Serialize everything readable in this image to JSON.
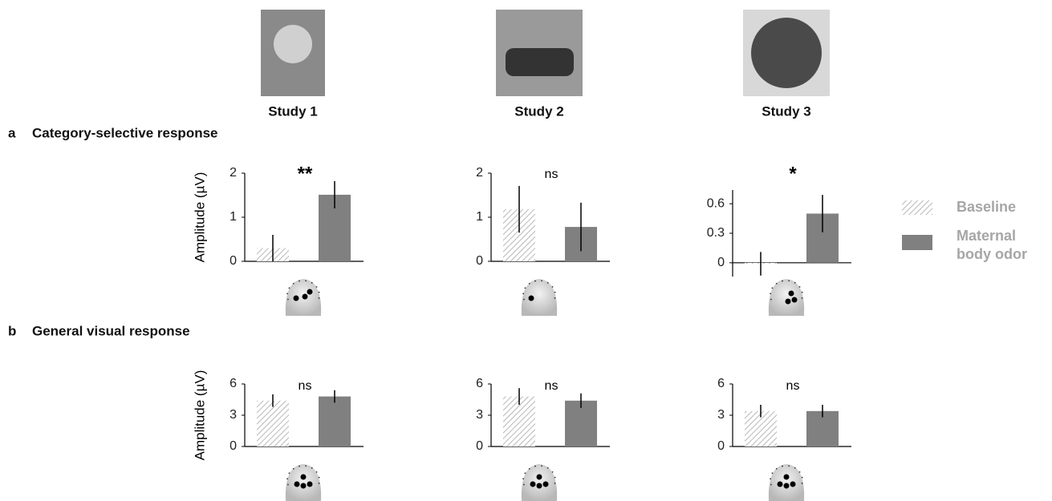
{
  "columns": [
    "Study 1",
    "Study 2",
    "Study 3"
  ],
  "sections": [
    {
      "letter": "a",
      "title": "Category-selective response"
    },
    {
      "letter": "b",
      "title": "General visual response"
    }
  ],
  "legend": [
    {
      "name": "Baseline",
      "color": "#a6a6a6",
      "hatch": true
    },
    {
      "name": "Maternal body odor",
      "color": "#808080",
      "hatch": false
    }
  ],
  "chart_data": [
    {
      "type": "bar",
      "ylabel": "Amplitude (µV)",
      "values": [
        0.3,
        1.51
      ],
      "errors": [
        0.3,
        0.31
      ],
      "ylim": [
        0,
        2
      ],
      "yticks": [
        0,
        1,
        2
      ],
      "annotation": "**"
    },
    {
      "type": "bar",
      "values": [
        1.18,
        0.78
      ],
      "errors": [
        0.53,
        0.55
      ],
      "ylim": [
        0,
        2
      ],
      "yticks": [
        0,
        1,
        2
      ],
      "annotation": "ns"
    },
    {
      "type": "bar",
      "values": [
        -0.01,
        0.5
      ],
      "errors": [
        0.12,
        0.19
      ],
      "ylim": [
        -0.14,
        0.74
      ],
      "yticks": [
        0,
        0.3,
        0.6
      ],
      "annotation": "*"
    },
    {
      "type": "bar",
      "ylabel": "Amplitude (µV)",
      "values": [
        4.4,
        4.8
      ],
      "errors": [
        0.6,
        0.6
      ],
      "ylim": [
        0,
        6
      ],
      "yticks": [
        0,
        3,
        6
      ],
      "annotation": "ns"
    },
    {
      "type": "bar",
      "values": [
        4.8,
        4.4
      ],
      "errors": [
        0.8,
        0.7
      ],
      "ylim": [
        0,
        6
      ],
      "yticks": [
        0,
        3,
        6
      ],
      "annotation": "ns"
    },
    {
      "type": "bar",
      "values": [
        3.4,
        3.4
      ],
      "errors": [
        0.6,
        0.6
      ],
      "ylim": [
        0,
        6
      ],
      "yticks": [
        0,
        3,
        6
      ],
      "annotation": "ns"
    }
  ]
}
